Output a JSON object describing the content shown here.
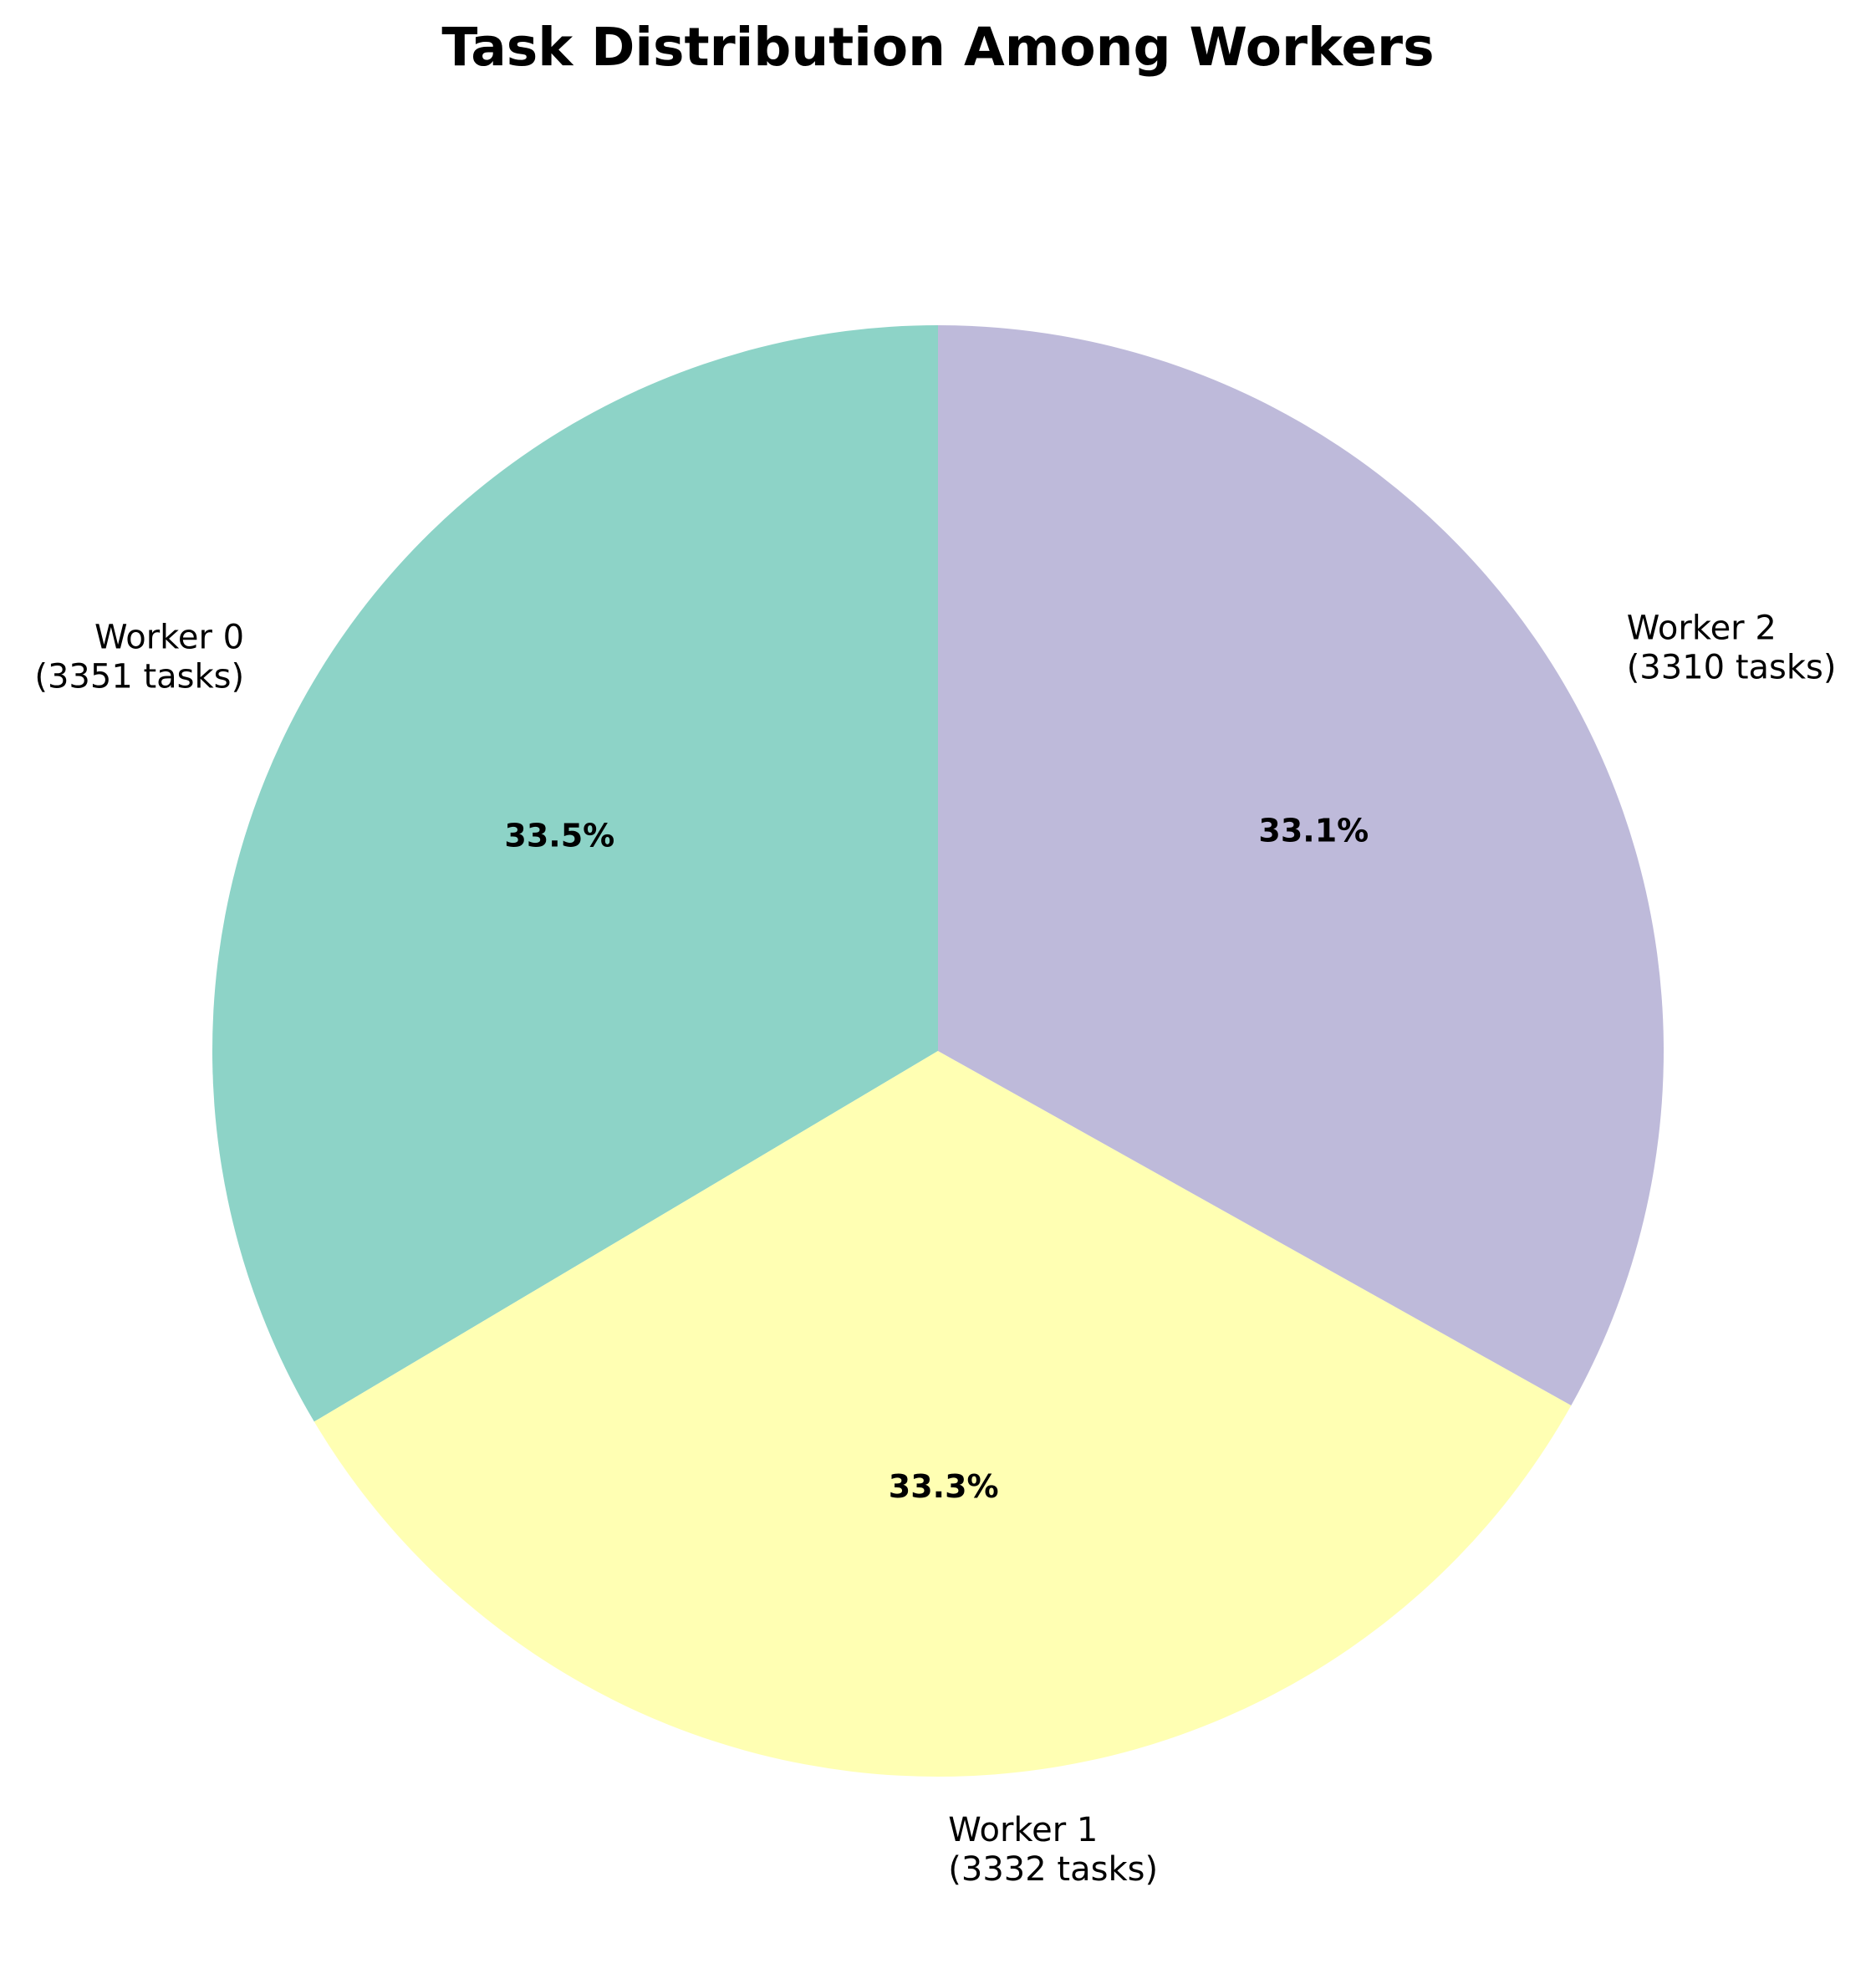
{
  "chart_data": {
    "type": "pie",
    "title": "Task Distribution Among Workers",
    "start_angle_deg": 90,
    "direction": "counterclockwise",
    "slices": [
      {
        "name": "Worker 0",
        "value": 3351,
        "pct_label": "33.5%",
        "label_line1": "Worker 0",
        "label_line2": "(3351 tasks)",
        "color": "#8dd3c7"
      },
      {
        "name": "Worker 1",
        "value": 3332,
        "pct_label": "33.3%",
        "label_line1": "Worker 1",
        "label_line2": "(3332 tasks)",
        "color": "#ffffb3"
      },
      {
        "name": "Worker 2",
        "value": 3310,
        "pct_label": "33.1%",
        "label_line1": "Worker 2",
        "label_line2": "(3310 tasks)",
        "color": "#bebada"
      }
    ]
  }
}
